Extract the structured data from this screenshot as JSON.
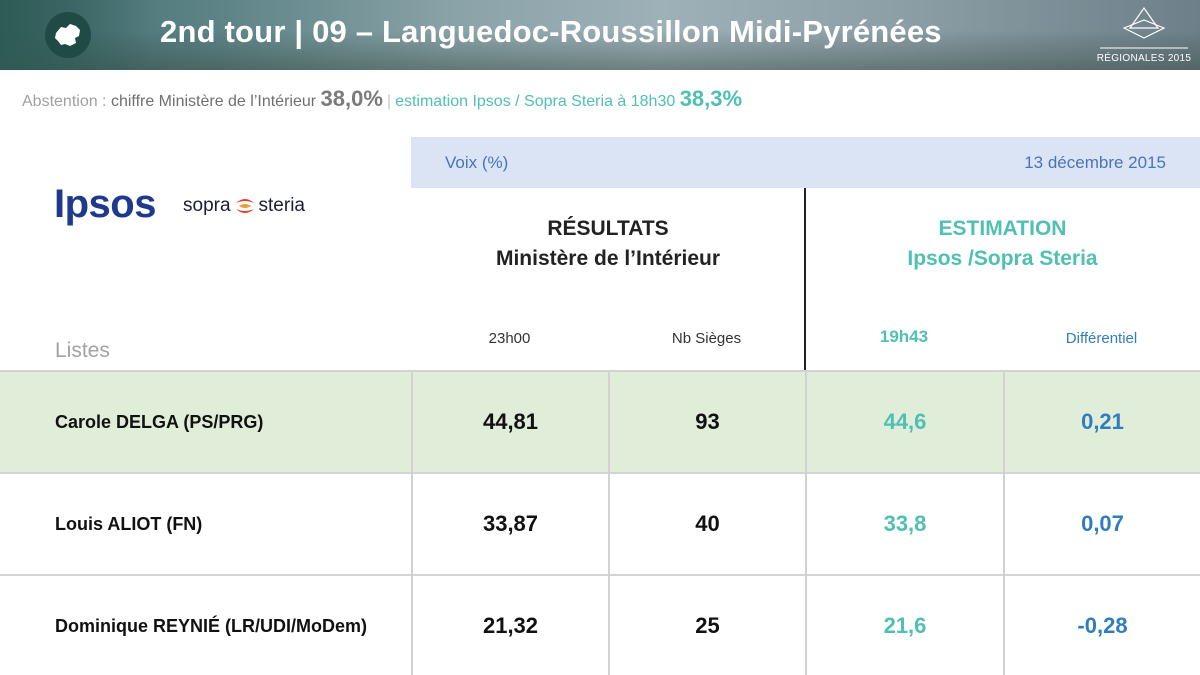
{
  "header": {
    "title": "2nd tour | 09 – Languedoc-Roussillon Midi-Pyrénées",
    "badge_label": "RÉGIONALES 2015"
  },
  "abstention": {
    "label": "Abstention : ",
    "ministere_label": "chiffre Ministère de l’Intérieur ",
    "ministere_value": "38,0%",
    "separator": "|",
    "estimation_label": "estimation Ipsos / Sopra Steria à 18h30 ",
    "estimation_value": "38,3%"
  },
  "logos": {
    "ipsos": "Ipsos",
    "sopra_left": "sopra",
    "sopra_right": "steria"
  },
  "table": {
    "unit_label": "Voix (%)",
    "date": "13 décembre 2015",
    "results_heading_1": "RÉSULTATS",
    "results_heading_2": "Ministère de l’Intérieur",
    "estimation_heading_1": "ESTIMATION",
    "estimation_heading_2": "Ipsos /Sopra Steria",
    "col_time_results": "23h00",
    "col_seats": "Nb Sièges",
    "col_time_estimation": "19h43",
    "col_diff": "Différentiel",
    "rows_label": "Listes",
    "rows": [
      {
        "name": "Carole DELGA (PS/PRG)",
        "result": "44,81",
        "seats": "93",
        "estimation": "44,6",
        "diff": "0,21"
      },
      {
        "name": "Louis ALIOT (FN)",
        "result": "33,87",
        "seats": "40",
        "estimation": "33,8",
        "diff": "0,07"
      },
      {
        "name": "Dominique REYNIÉ (LR/UDI/MoDem)",
        "result": "21,32",
        "seats": "25",
        "estimation": "21,6",
        "diff": "-0,28"
      }
    ]
  },
  "colors": {
    "ipsos_blue": "#1f3a8c",
    "teal": "#4fc0b2",
    "diff_blue": "#2f7dbf",
    "highlight_row": "#e0edd9",
    "date_bar": "#dae4f5"
  }
}
